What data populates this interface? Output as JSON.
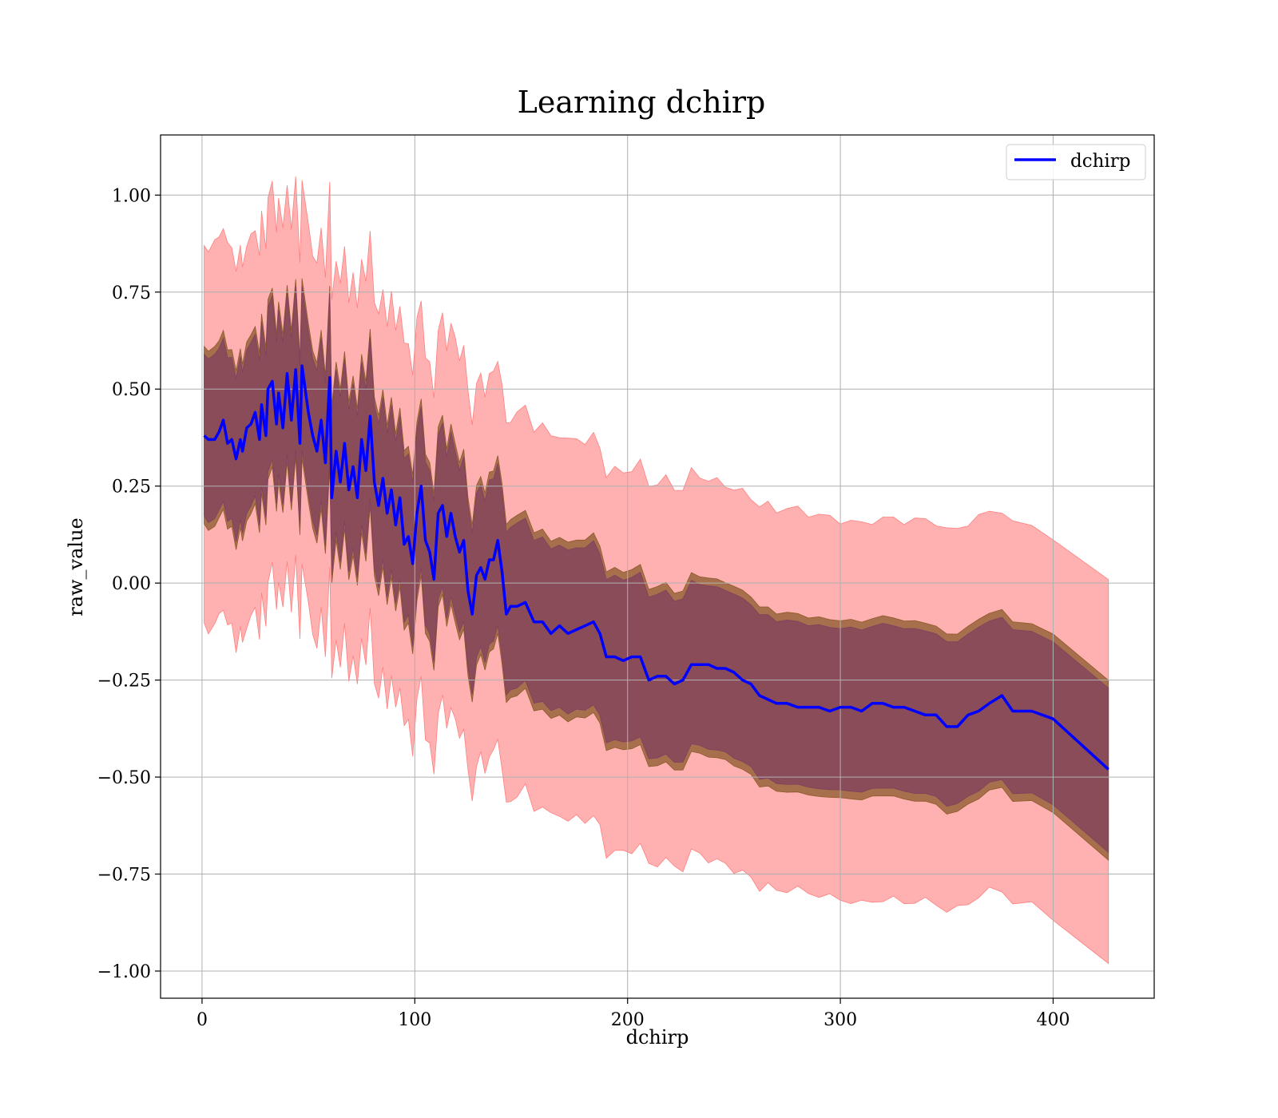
{
  "chart_data": {
    "type": "line",
    "title": "Learning dchirp",
    "xlabel": "dchirp",
    "ylabel": "raw_value",
    "xlim": [
      -19.5,
      447.5
    ],
    "ylim": [
      -1.07,
      1.155
    ],
    "x_ticks": [
      0,
      100,
      200,
      300,
      400
    ],
    "x_tick_labels": [
      "0",
      "100",
      "200",
      "300",
      "400"
    ],
    "y_ticks": [
      1.0,
      0.75,
      0.5,
      0.25,
      0.0,
      -0.25,
      -0.5,
      -0.75,
      -1.0
    ],
    "y_tick_labels": [
      "1.00",
      "0.75",
      "0.50",
      "0.25",
      "0.00",
      "−0.25",
      "−0.50",
      "−0.75",
      "−1.00"
    ],
    "grid": true,
    "legend": {
      "position": "top-right",
      "entries": [
        "dchirp"
      ]
    },
    "colors": {
      "line": "#0000ff",
      "outer_band": "#ff8080",
      "mid_band": "#8b5a2b",
      "inner_band": "#7f3f5f",
      "grid": "#b0b0b0"
    },
    "series": [
      {
        "name": "dchirp",
        "x": [
          1,
          3,
          6,
          8,
          10,
          12,
          14,
          16,
          18,
          19,
          21,
          23,
          25,
          27,
          28,
          30,
          31,
          33,
          35,
          36,
          38,
          40,
          42,
          44,
          46,
          47,
          50,
          52,
          54,
          56,
          58,
          60,
          61,
          63,
          65,
          67,
          69,
          71,
          73,
          75,
          77,
          79,
          81,
          83,
          85,
          87,
          89,
          91,
          93,
          95,
          97,
          99,
          101,
          103,
          105,
          107,
          109,
          111,
          113,
          115,
          117,
          119,
          121,
          123,
          125,
          127,
          129,
          131,
          133,
          135,
          137,
          139,
          141,
          143,
          145,
          148,
          152,
          156,
          160,
          164,
          168,
          172,
          176,
          180,
          184,
          187,
          190,
          194,
          198,
          202,
          206,
          210,
          214,
          218,
          222,
          226,
          230,
          234,
          238,
          242,
          246,
          250,
          254,
          258,
          262,
          266,
          270,
          275,
          280,
          285,
          290,
          295,
          300,
          305,
          310,
          315,
          320,
          325,
          330,
          335,
          340,
          345,
          350,
          355,
          360,
          365,
          370,
          376,
          381,
          390,
          400,
          426
        ],
        "values": [
          0.38,
          0.37,
          0.37,
          0.39,
          0.42,
          0.36,
          0.37,
          0.32,
          0.37,
          0.34,
          0.4,
          0.41,
          0.44,
          0.37,
          0.46,
          0.38,
          0.5,
          0.52,
          0.41,
          0.49,
          0.4,
          0.54,
          0.42,
          0.55,
          0.36,
          0.56,
          0.44,
          0.38,
          0.34,
          0.42,
          0.31,
          0.53,
          0.22,
          0.34,
          0.26,
          0.36,
          0.24,
          0.3,
          0.22,
          0.37,
          0.29,
          0.43,
          0.26,
          0.2,
          0.27,
          0.18,
          0.24,
          0.15,
          0.22,
          0.1,
          0.12,
          0.05,
          0.18,
          0.25,
          0.11,
          0.08,
          0.01,
          0.18,
          0.2,
          0.12,
          0.18,
          0.12,
          0.08,
          0.11,
          -0.02,
          -0.08,
          0.02,
          0.04,
          0.01,
          0.06,
          0.06,
          0.11,
          0.03,
          -0.08,
          -0.06,
          -0.06,
          -0.05,
          -0.1,
          -0.1,
          -0.13,
          -0.11,
          -0.13,
          -0.12,
          -0.11,
          -0.1,
          -0.13,
          -0.19,
          -0.19,
          -0.2,
          -0.19,
          -0.19,
          -0.25,
          -0.24,
          -0.24,
          -0.26,
          -0.25,
          -0.21,
          -0.21,
          -0.21,
          -0.22,
          -0.22,
          -0.23,
          -0.25,
          -0.26,
          -0.29,
          -0.3,
          -0.31,
          -0.31,
          -0.32,
          -0.32,
          -0.32,
          -0.33,
          -0.32,
          -0.32,
          -0.33,
          -0.31,
          -0.31,
          -0.32,
          -0.32,
          -0.33,
          -0.34,
          -0.34,
          -0.37,
          -0.37,
          -0.34,
          -0.33,
          -0.31,
          -0.29,
          -0.33,
          -0.33,
          -0.35,
          -0.48
        ]
      }
    ],
    "bands": [
      {
        "name": "outer",
        "half_width_start": 0.49,
        "half_width_end": 0.49
      },
      {
        "name": "mid",
        "half_width_start": 0.23,
        "half_width_end": 0.23
      },
      {
        "name": "inner",
        "half_width_start": 0.21,
        "half_width_end": 0.21
      }
    ]
  }
}
